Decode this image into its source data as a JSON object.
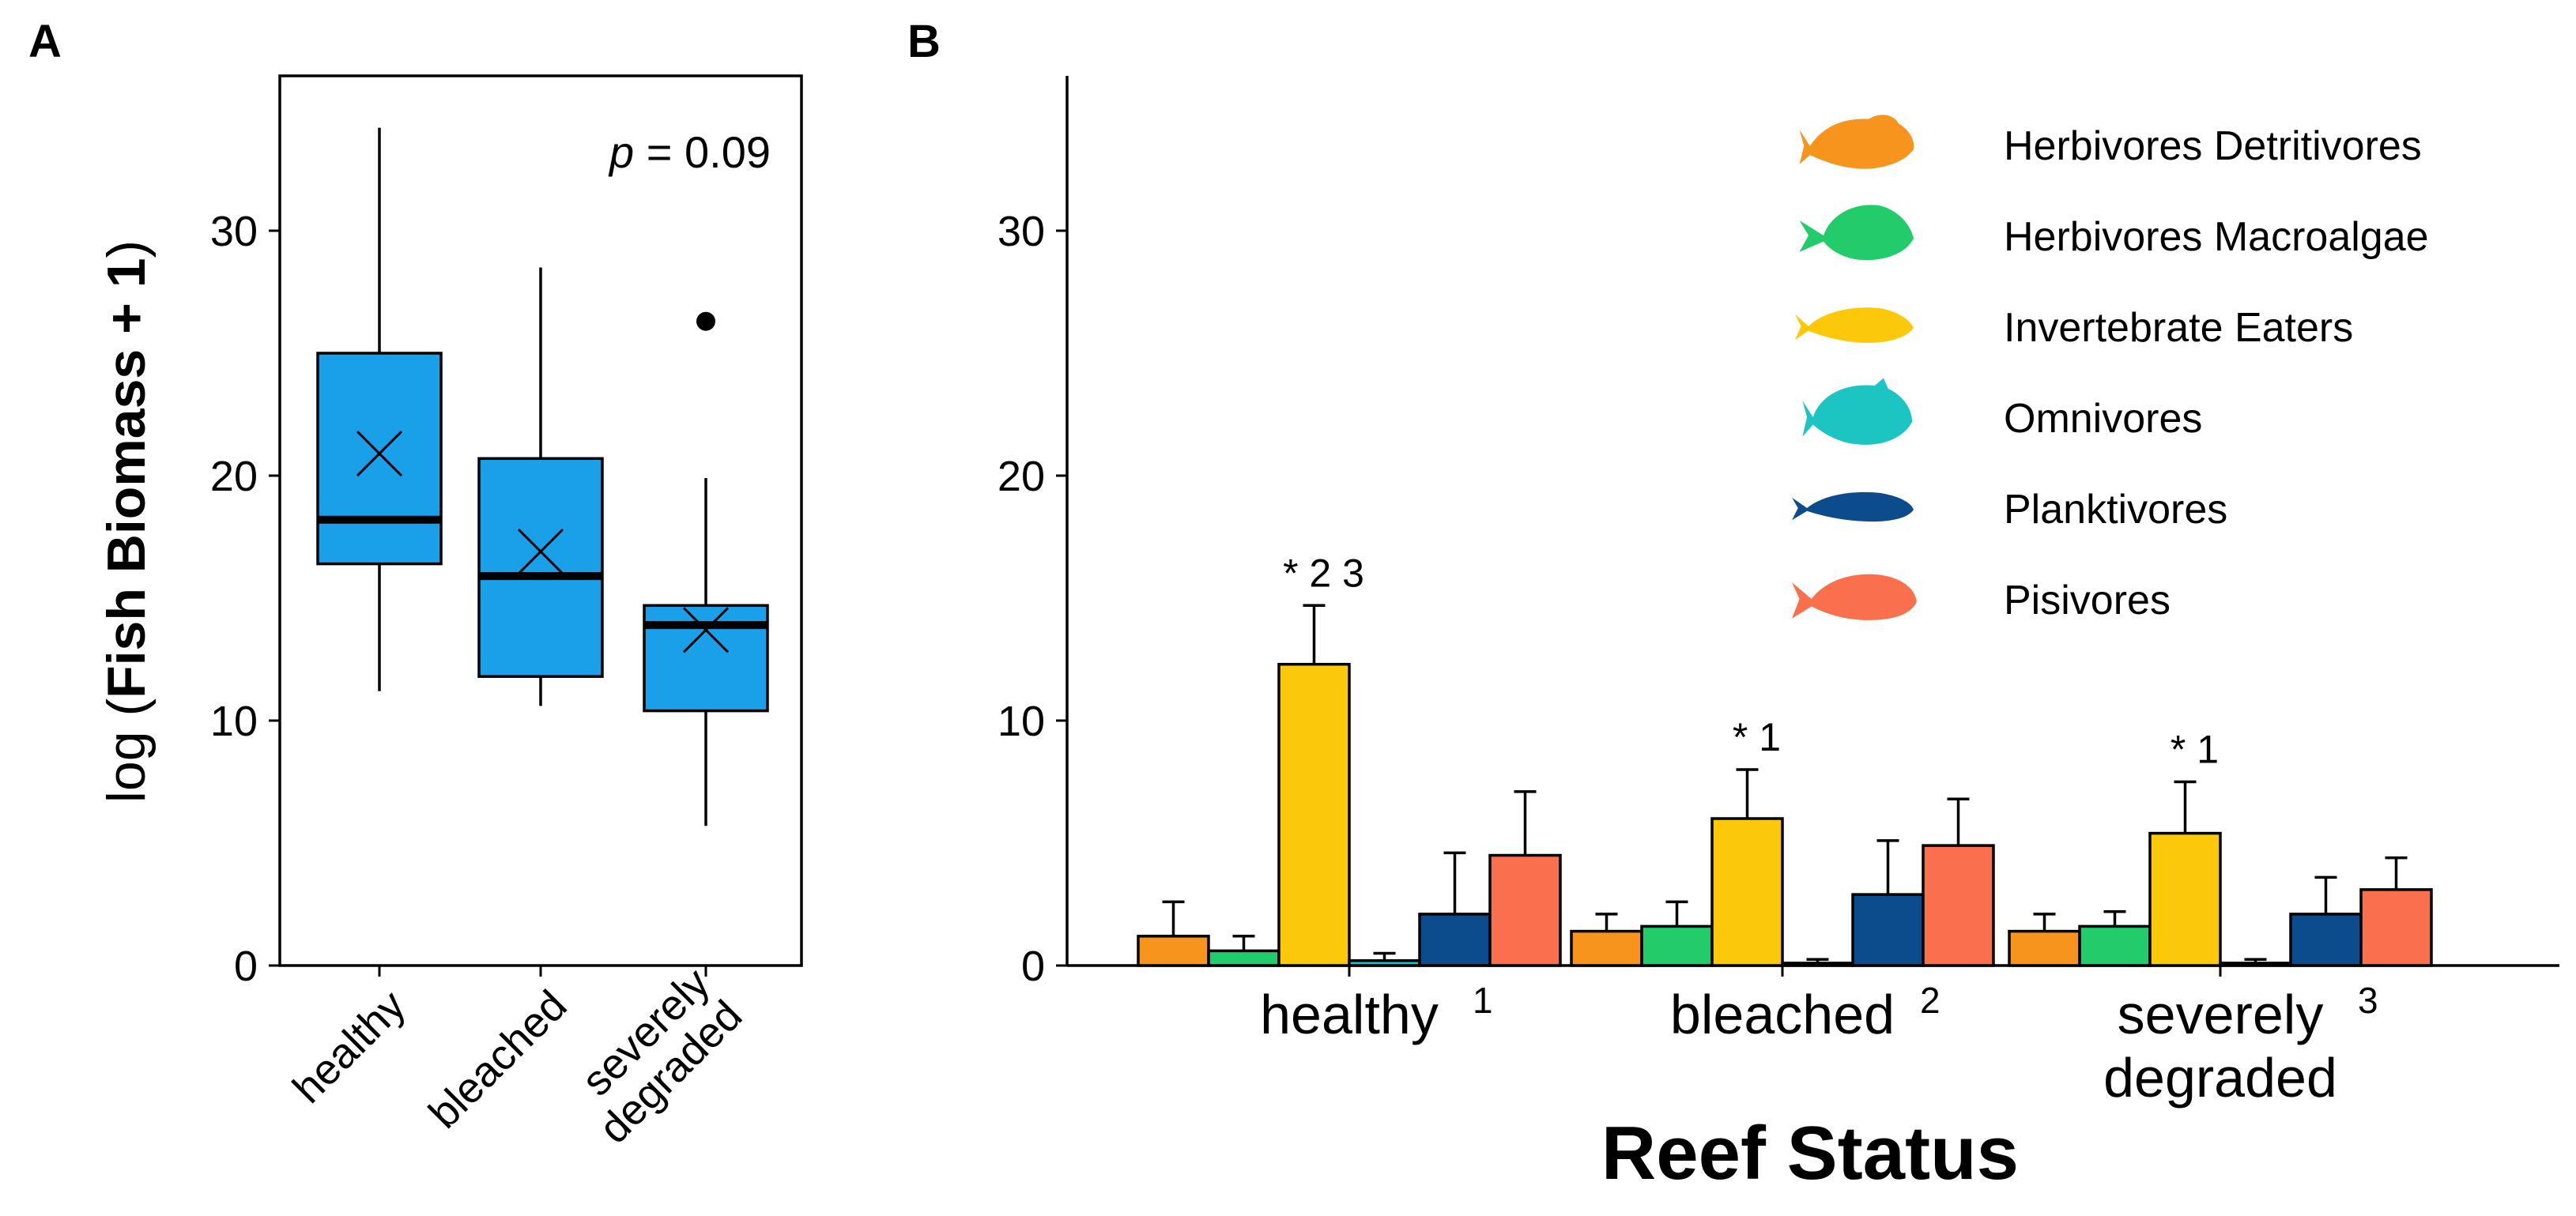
{
  "figure": {
    "panel_a_label": "A",
    "panel_b_label": "B",
    "shared_ylabel_prefix": "log (",
    "shared_ylabel_bold": "Fish Biomass + 1",
    "shared_ylabel_suffix": ")"
  },
  "colors": {
    "box_fill": "#1aa0e8",
    "herbivores_detritivores": "#f7941d",
    "herbivores_macroalgae": "#22cc6a",
    "invertebrate_eaters": "#fcc80a",
    "omnivores": "#1cc4c2",
    "planktivores": "#0c4c8c",
    "pisivores": "#fa6f4c"
  },
  "chart_data": [
    {
      "type": "box",
      "panel": "A",
      "title": "",
      "ylabel": "log (Fish Biomass + 1)",
      "xlabel": "",
      "ylim": [
        0,
        35
      ],
      "yticks": [
        0,
        10,
        20,
        30
      ],
      "annotation": {
        "italic": "p",
        "text": " = 0.09",
        "placement": "top-right"
      },
      "groups": [
        {
          "category": "healthy",
          "min": 11.2,
          "q1": 16.4,
          "median": 18.2,
          "q3": 25.0,
          "max": 34.2,
          "mean": 20.9,
          "outliers": []
        },
        {
          "category": "bleached",
          "min": 10.6,
          "q1": 11.8,
          "median": 15.9,
          "q3": 20.7,
          "max": 28.5,
          "mean": 16.9,
          "outliers": []
        },
        {
          "category": "severely degraded",
          "label_lines": [
            "severely",
            "degraded"
          ],
          "min": 5.7,
          "q1": 10.4,
          "median": 13.9,
          "q3": 14.7,
          "max": 19.9,
          "mean": 13.7,
          "outliers": [
            26.3
          ]
        }
      ]
    },
    {
      "type": "bar",
      "panel": "B",
      "title": "",
      "xlabel": "Reef Status",
      "ylabel": "",
      "ylim": [
        0,
        35
      ],
      "yticks": [
        0,
        10,
        20,
        30
      ],
      "legend_position": "top-right",
      "categories": [
        {
          "label_lines": [
            "healthy"
          ],
          "superscript": "1",
          "annotation": "* 2 3",
          "annotated_series": "Invertebrate Eaters"
        },
        {
          "label_lines": [
            "bleached"
          ],
          "superscript": "2",
          "annotation": "* 1",
          "annotated_series": "Invertebrate Eaters"
        },
        {
          "label_lines": [
            "severely",
            "degraded"
          ],
          "superscript": "3",
          "annotation": "* 1",
          "annotated_series": "Invertebrate Eaters"
        }
      ],
      "series": [
        {
          "name": "Herbivores Detritivores",
          "color_key": "herbivores_detritivores",
          "icon": "fish-detritivore-icon",
          "values": [
            1.2,
            1.4,
            1.4
          ],
          "errors": [
            1.4,
            0.7,
            0.7
          ]
        },
        {
          "name": "Herbivores Macroalgae",
          "color_key": "herbivores_macroalgae",
          "icon": "fish-macroalgae-icon",
          "values": [
            0.6,
            1.6,
            1.6
          ],
          "errors": [
            0.6,
            1.0,
            0.6
          ]
        },
        {
          "name": "Invertebrate Eaters",
          "color_key": "invertebrate_eaters",
          "icon": "fish-invertebrate-icon",
          "values": [
            12.3,
            6.0,
            5.4
          ],
          "errors": [
            2.4,
            2.0,
            2.1
          ]
        },
        {
          "name": "Omnivores",
          "color_key": "omnivores",
          "icon": "fish-omnivore-icon",
          "values": [
            0.2,
            0.1,
            0.1
          ],
          "errors": [
            0.3,
            0.15,
            0.15
          ]
        },
        {
          "name": "Planktivores",
          "color_key": "planktivores",
          "icon": "fish-planktivore-icon",
          "values": [
            2.1,
            2.9,
            2.1
          ],
          "errors": [
            2.5,
            2.2,
            1.5
          ]
        },
        {
          "name": "Pisivores",
          "color_key": "pisivores",
          "icon": "fish-pisivore-icon",
          "values": [
            4.5,
            4.9,
            3.1
          ],
          "errors": [
            2.6,
            1.9,
            1.3
          ]
        }
      ]
    }
  ]
}
